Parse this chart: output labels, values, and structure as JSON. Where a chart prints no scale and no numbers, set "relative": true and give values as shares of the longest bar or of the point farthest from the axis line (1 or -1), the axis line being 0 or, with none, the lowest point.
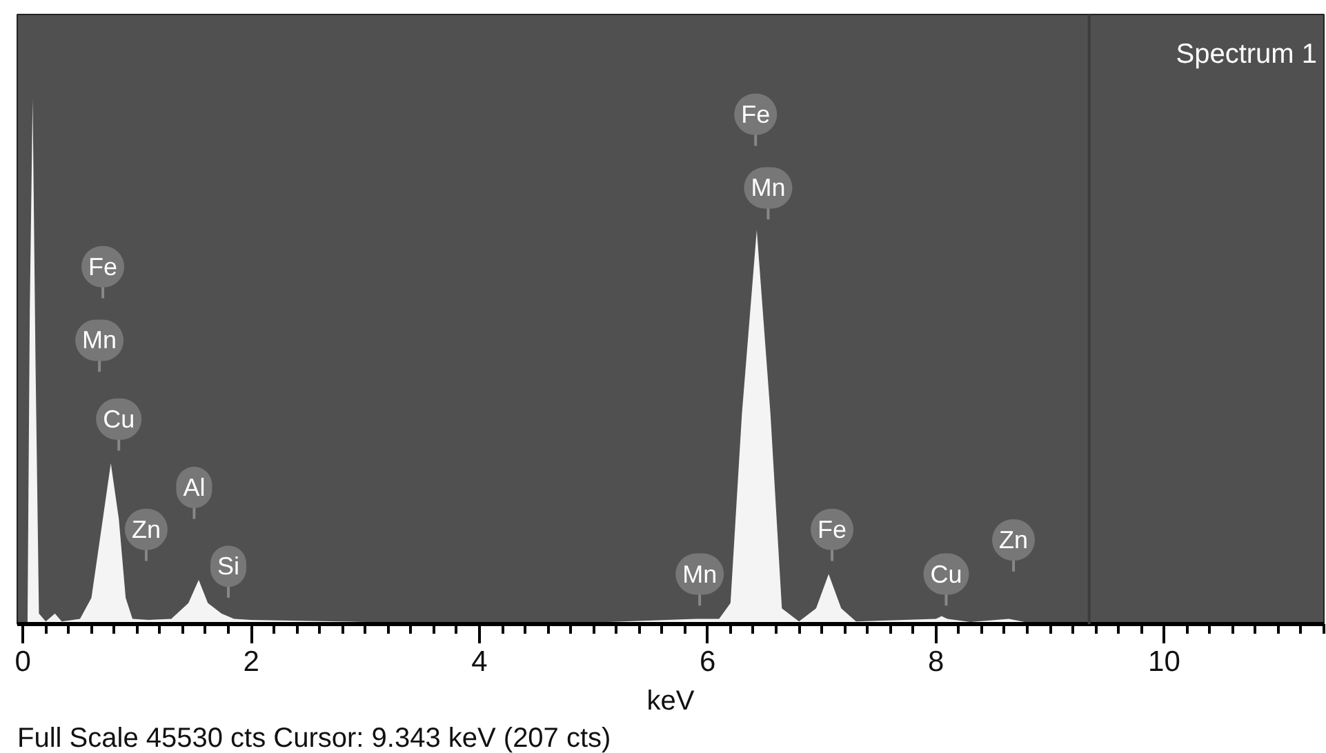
{
  "chart_data": {
    "type": "area",
    "title": "Spectrum 1",
    "xlabel": "keV",
    "relative": true,
    "xlim": [
      -0.05,
      11.4
    ],
    "xticks": [
      0,
      2,
      4,
      6,
      8,
      10
    ],
    "series": [
      {
        "color": "#f4f4f4",
        "x": [
          0.0,
          0.04,
          0.06,
          0.085,
          0.11,
          0.14,
          0.2,
          0.28,
          0.34,
          0.5,
          0.6,
          0.7,
          0.77,
          0.84,
          0.9,
          0.96,
          1.1,
          1.3,
          1.45,
          1.54,
          1.62,
          1.74,
          1.85,
          2.0,
          2.5,
          3.0,
          4.0,
          5.0,
          5.9,
          6.1,
          6.2,
          6.3,
          6.43,
          6.55,
          6.65,
          6.8,
          6.95,
          7.06,
          7.17,
          7.3,
          8.0,
          8.05,
          8.1,
          8.3,
          8.64,
          8.8,
          11.4
        ],
        "values": [
          0,
          0,
          0.6,
          1.0,
          0.5,
          0.02,
          0.005,
          0.02,
          0.005,
          0.01,
          0.05,
          0.2,
          0.306,
          0.2,
          0.05,
          0.01,
          0.008,
          0.01,
          0.04,
          0.084,
          0.04,
          0.02,
          0.01,
          0.008,
          0.006,
          0.004,
          0.003,
          0.003,
          0.01,
          0.01,
          0.04,
          0.4,
          0.75,
          0.4,
          0.03,
          0.005,
          0.03,
          0.095,
          0.03,
          0.005,
          0.01,
          0.015,
          0.01,
          0.004,
          0.01,
          0.003,
          0.002
        ]
      }
    ],
    "ref_lines": [
      {
        "axis": "x",
        "value": 9.343,
        "color": "#3c3c3c"
      }
    ],
    "annotations": [
      {
        "text": "Fe",
        "x": 0.7,
        "y": 0.68
      },
      {
        "text": "Mn",
        "x": 0.67,
        "y": 0.54
      },
      {
        "text": "Cu",
        "x": 0.84,
        "y": 0.39
      },
      {
        "text": "Al",
        "x": 1.5,
        "y": 0.26
      },
      {
        "text": "Zn",
        "x": 1.08,
        "y": 0.18
      },
      {
        "text": "Si",
        "x": 1.8,
        "y": 0.11
      },
      {
        "text": "Mn",
        "x": 5.93,
        "y": 0.095
      },
      {
        "text": "Fe",
        "x": 6.42,
        "y": 0.97
      },
      {
        "text": "Mn",
        "x": 6.53,
        "y": 0.83
      },
      {
        "text": "Fe",
        "x": 7.09,
        "y": 0.18
      },
      {
        "text": "Cu",
        "x": 8.09,
        "y": 0.095
      },
      {
        "text": "Zn",
        "x": 8.68,
        "y": 0.16
      },
      "Full Scale 45530 cts  Cursor: 9.343 keV (207 cts)"
    ],
    "grid": false
  }
}
